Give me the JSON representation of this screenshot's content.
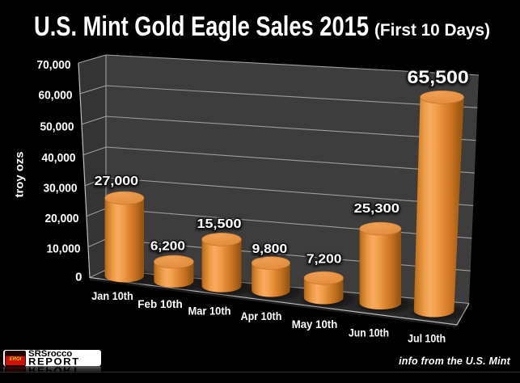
{
  "title": "U.S. Mint Gold Eagle Sales 2015",
  "title_suffix": "(First 10 Days)",
  "footnote": "info from the U.S. Mint",
  "logo": {
    "cube_text": "EROI",
    "brand_top": "SRSrocco",
    "brand_bottom": "REPORT"
  },
  "chart_data": {
    "type": "bar",
    "style": "3d-cylinder",
    "title": "U.S. Mint Gold Eagle Sales 2015 (First 10 Days)",
    "categories": [
      "Jan 10th",
      "Feb 10th",
      "Mar 10th",
      "Apr 10th",
      "May 10th",
      "Jun 10th",
      "Jul 10th"
    ],
    "values": [
      27000,
      6200,
      15500,
      9800,
      7200,
      25300,
      65500
    ],
    "value_labels": [
      "27,000",
      "6,200",
      "15,500",
      "9,800",
      "7,200",
      "25,300",
      "65,500"
    ],
    "xlabel": "",
    "ylabel": "troy ozs",
    "ylim": [
      0,
      70000
    ],
    "ytick_step": 10000,
    "ytick_labels": [
      "0",
      "10,000",
      "20,000",
      "30,000",
      "40,000",
      "50,000",
      "60,000",
      "70,000"
    ],
    "grid": true,
    "legend": false,
    "colors": {
      "background": "#000000",
      "text": "#ffffff",
      "bar": "#e8923f",
      "bar_highlight": "#f9ac60",
      "bar_shadow": "#9c5a12",
      "back_wall": "#3d3d3d",
      "side_wall": "#343434",
      "floor": "#2a2a2a",
      "gridline": "#a2a2a2"
    }
  }
}
